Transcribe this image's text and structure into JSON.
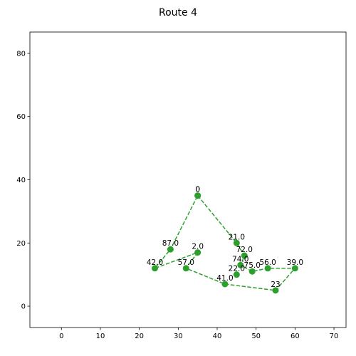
{
  "chart_data": {
    "type": "line",
    "title": "Route 4",
    "xlabel": "",
    "ylabel": "",
    "xlim": [
      -8.1,
      73.1
    ],
    "ylim": [
      -6.75,
      86.75
    ],
    "xticks": [
      0,
      10,
      20,
      30,
      40,
      50,
      60,
      70
    ],
    "yticks": [
      0,
      20,
      40,
      60,
      80
    ],
    "grid": false,
    "line_style": "dashed",
    "color": "#2ca02c",
    "points": [
      {
        "x": 35,
        "y": 35,
        "label": "0"
      },
      {
        "x": 45,
        "y": 20,
        "label": "21.0"
      },
      {
        "x": 47,
        "y": 16,
        "label": "72.0"
      },
      {
        "x": 46,
        "y": 13,
        "label": "74.0"
      },
      {
        "x": 49,
        "y": 11,
        "label": "75.0"
      },
      {
        "x": 53,
        "y": 12,
        "label": "56.0"
      },
      {
        "x": 60,
        "y": 12,
        "label": "39.0"
      },
      {
        "x": 55,
        "y": 5,
        "label": "23"
      },
      {
        "x": 42,
        "y": 7,
        "label": "41.0"
      },
      {
        "x": 32,
        "y": 12,
        "label": "57.0"
      },
      {
        "x": 35,
        "y": 17,
        "label": "2.0"
      },
      {
        "x": 24,
        "y": 12,
        "label": "42.0"
      },
      {
        "x": 28,
        "y": 18,
        "label": "87.0"
      },
      {
        "x": 35,
        "y": 35,
        "label": "0"
      }
    ],
    "extra_points": [
      {
        "x": 45,
        "y": 10,
        "label": "22.0"
      }
    ]
  }
}
